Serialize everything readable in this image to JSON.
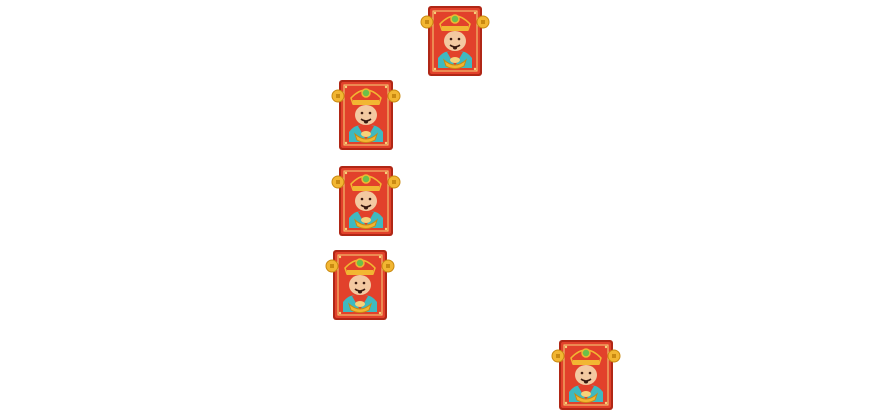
{
  "game": {
    "symbol_name": "fortune-god",
    "symbols": [
      {
        "id": "s1",
        "symbol": "fortune-god"
      },
      {
        "id": "s2",
        "symbol": "fortune-god"
      },
      {
        "id": "s3",
        "symbol": "fortune-god"
      },
      {
        "id": "s4",
        "symbol": "fortune-god"
      },
      {
        "id": "s5",
        "symbol": "fortune-god"
      }
    ]
  },
  "colors": {
    "frame_red": "#e2412b",
    "frame_dark": "#b02716",
    "gold": "#f2b632",
    "skin": "#f3c9a1",
    "teal": "#3fb9c0",
    "jade": "#6cc04a"
  }
}
